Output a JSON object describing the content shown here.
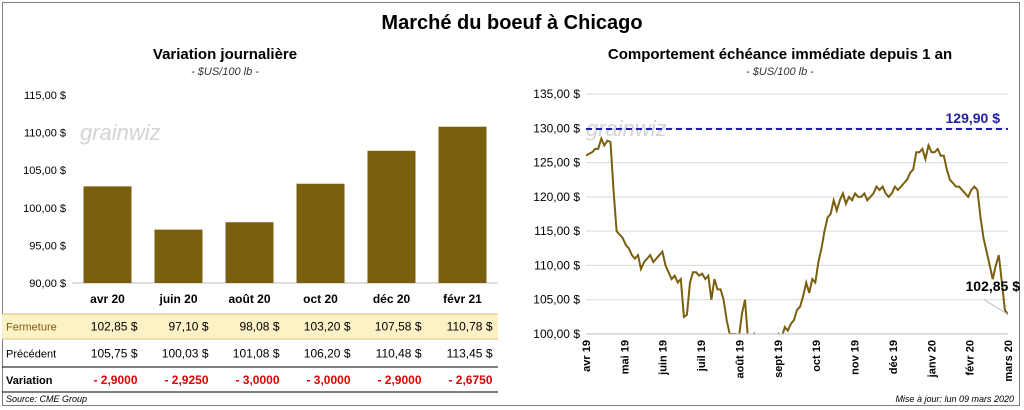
{
  "title": "Marché du boeuf à Chicago",
  "source": "Source: CME Group",
  "update": "Mise à jour: lun 09 mars 2020",
  "watermark": "grainwiz",
  "colors": {
    "bar": "#7a5f0e",
    "line": "#7a5f0e",
    "ref": "#1f1fa8",
    "neg": "#e00000",
    "fermetureBg": "#fdf1c6"
  },
  "left": {
    "title": "Variation  journalière",
    "unit": "- $US/100 lb -",
    "row_labels": {
      "fermeture": "Fermeture",
      "precedent": "Précédent",
      "variation": "Variation"
    },
    "fermeture": [
      "102,85  $",
      "97,10  $",
      "98,08  $",
      "103,20  $",
      "107,58  $",
      "110,78  $"
    ],
    "precedent": [
      "105,75  $",
      "100,03  $",
      "101,08  $",
      "106,20  $",
      "110,48  $",
      "113,45  $"
    ],
    "variation": [
      "- 2,9000",
      "- 2,9250",
      "- 3,0000",
      "- 3,0000",
      "- 2,9000",
      "- 2,6750"
    ]
  },
  "right": {
    "title": "Comportement  échéance immédiate depuis 1 an",
    "unit": "- $US/100 lb -",
    "ref_label": "129,90 $",
    "last_label": "102,85 $"
  },
  "chart_data": [
    {
      "type": "bar",
      "title": "Variation  journalière",
      "categories": [
        "avr 20",
        "juin 20",
        "août 20",
        "oct 20",
        "déc 20",
        "févr 21"
      ],
      "values": [
        102.85,
        97.1,
        98.08,
        103.2,
        107.58,
        110.78
      ],
      "ylim": [
        90,
        115
      ],
      "yticks": [
        90,
        95,
        100,
        105,
        110,
        115
      ],
      "ytick_labels": [
        "90,00 $",
        "95,00 $",
        "100,00 $",
        "105,00 $",
        "110,00 $",
        "115,00 $"
      ]
    },
    {
      "type": "line",
      "title": "Comportement  échéance immédiate depuis 1 an",
      "ylim": [
        100,
        135
      ],
      "yticks": [
        100,
        105,
        110,
        115,
        120,
        125,
        130,
        135
      ],
      "ytick_labels": [
        "100,00 $",
        "105,00 $",
        "110,00 $",
        "115,00 $",
        "120,00 $",
        "125,00 $",
        "130,00 $",
        "135,00 $"
      ],
      "x_labels": [
        "avr 19",
        "mai 19",
        "juin 19",
        "juil 19",
        "août 19",
        "sept 19",
        "oct 19",
        "nov 19",
        "déc 19",
        "janv 20",
        "févr 20",
        "mars 20"
      ],
      "reference": 129.9,
      "series": [
        {
          "values": [
            126.0,
            126.3,
            126.5,
            127.0,
            127.0,
            128.5,
            127.5,
            128.2,
            128.0,
            121.0,
            115.0,
            114.5,
            114.0,
            113.0,
            112.5,
            111.5,
            111.0,
            111.5,
            109.5,
            110.5,
            111.0,
            111.5,
            110.5,
            111.0,
            111.5,
            112.0,
            110.0,
            109.0,
            108.0,
            108.5,
            107.5,
            108.0,
            102.5,
            102.8,
            107.5,
            109.0,
            109.0,
            108.5,
            108.8,
            108.0,
            108.5,
            105.0,
            108.0,
            106.5,
            106.5,
            105.0,
            102.0,
            100.0,
            100.0,
            100.0,
            99.5,
            103.0,
            105.0,
            99.0,
            99.5,
            100.0,
            98.0,
            97.5,
            97.0,
            97.5,
            98.0,
            98.5,
            99.0,
            100.0,
            99.5,
            101.0,
            100.5,
            101.5,
            102.0,
            103.5,
            104.0,
            105.5,
            107.5,
            106.0,
            108.0,
            107.5,
            110.5,
            112.5,
            115.0,
            117.0,
            117.5,
            119.5,
            118.0,
            119.5,
            120.5,
            119.0,
            120.0,
            119.5,
            120.5,
            120.0,
            120.0,
            120.5,
            119.5,
            120.0,
            120.5,
            121.5,
            121.0,
            121.5,
            120.5,
            120.0,
            120.5,
            121.5,
            121.0,
            121.5,
            122.0,
            122.5,
            123.5,
            124.0,
            126.5,
            126.5,
            127.0,
            125.5,
            127.5,
            126.5,
            126.5,
            127.0,
            126.0,
            126.0,
            124.0,
            122.5,
            122.0,
            121.5,
            121.5,
            121.0,
            120.5,
            120.0,
            121.0,
            121.5,
            121.0,
            117.0,
            114.0,
            112.0,
            110.0,
            108.0,
            110.0,
            111.5,
            107.5,
            103.5,
            102.85
          ]
        }
      ]
    }
  ]
}
